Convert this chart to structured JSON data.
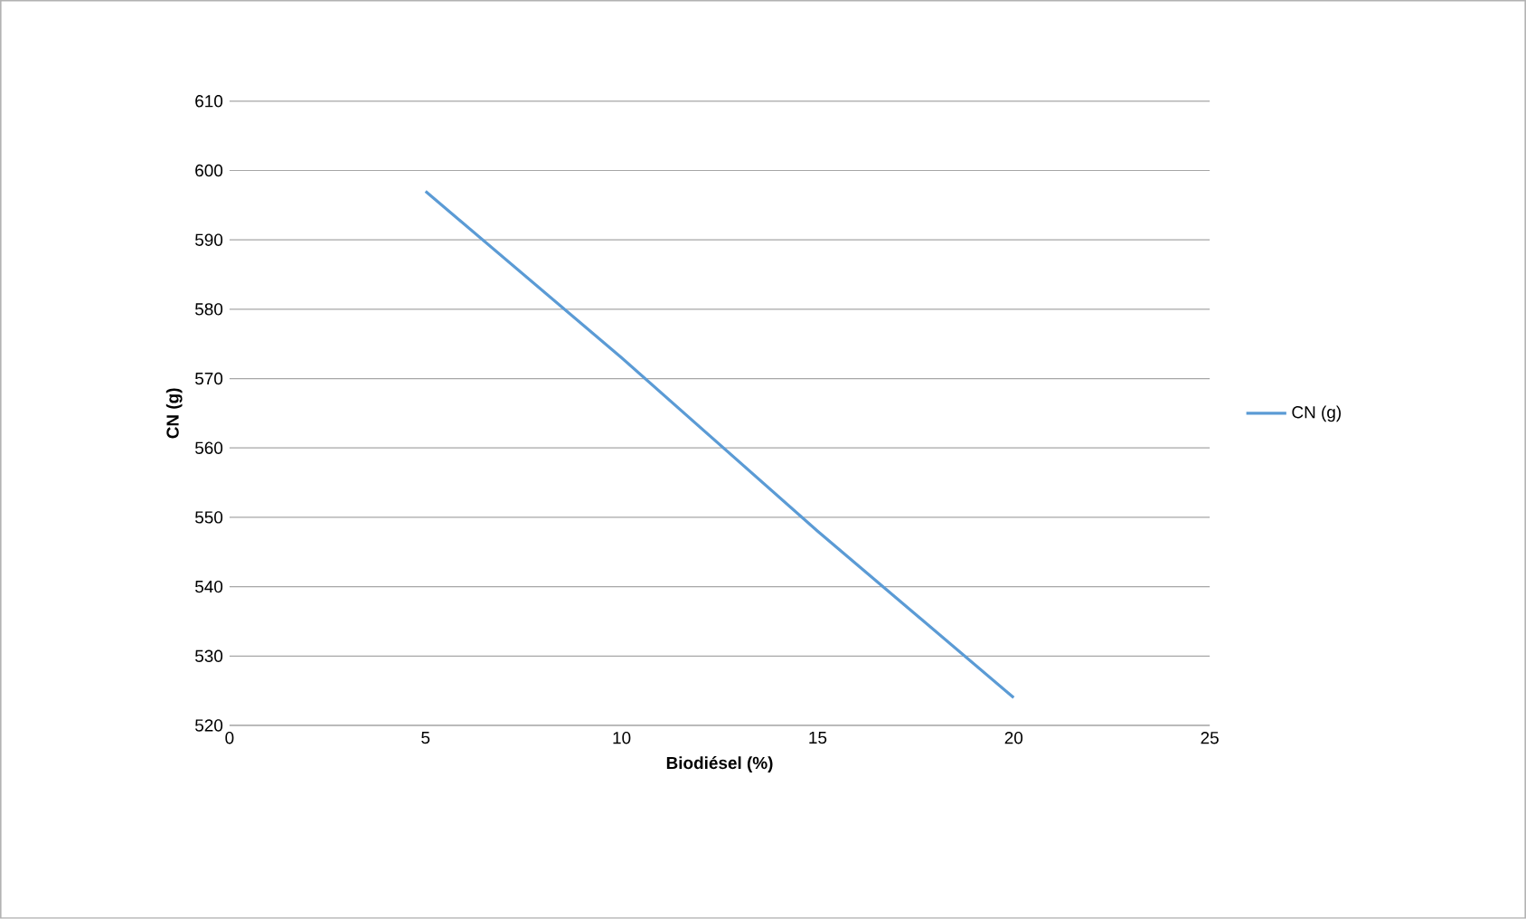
{
  "chart_data": {
    "type": "line",
    "xlabel": "Biodiésel (%)",
    "ylabel": "CN (g)",
    "x": [
      5,
      10,
      15,
      20
    ],
    "series": [
      {
        "name": "CN (g)",
        "color": "#5b9bd5",
        "values": [
          597,
          573,
          548,
          524
        ]
      }
    ],
    "xlim": [
      0,
      25
    ],
    "ylim": [
      520,
      610
    ],
    "xticks": [
      0,
      5,
      10,
      15,
      20,
      25
    ],
    "yticks": [
      520,
      530,
      540,
      550,
      560,
      570,
      580,
      590,
      600,
      610
    ],
    "grid": "y",
    "legend": "right"
  }
}
